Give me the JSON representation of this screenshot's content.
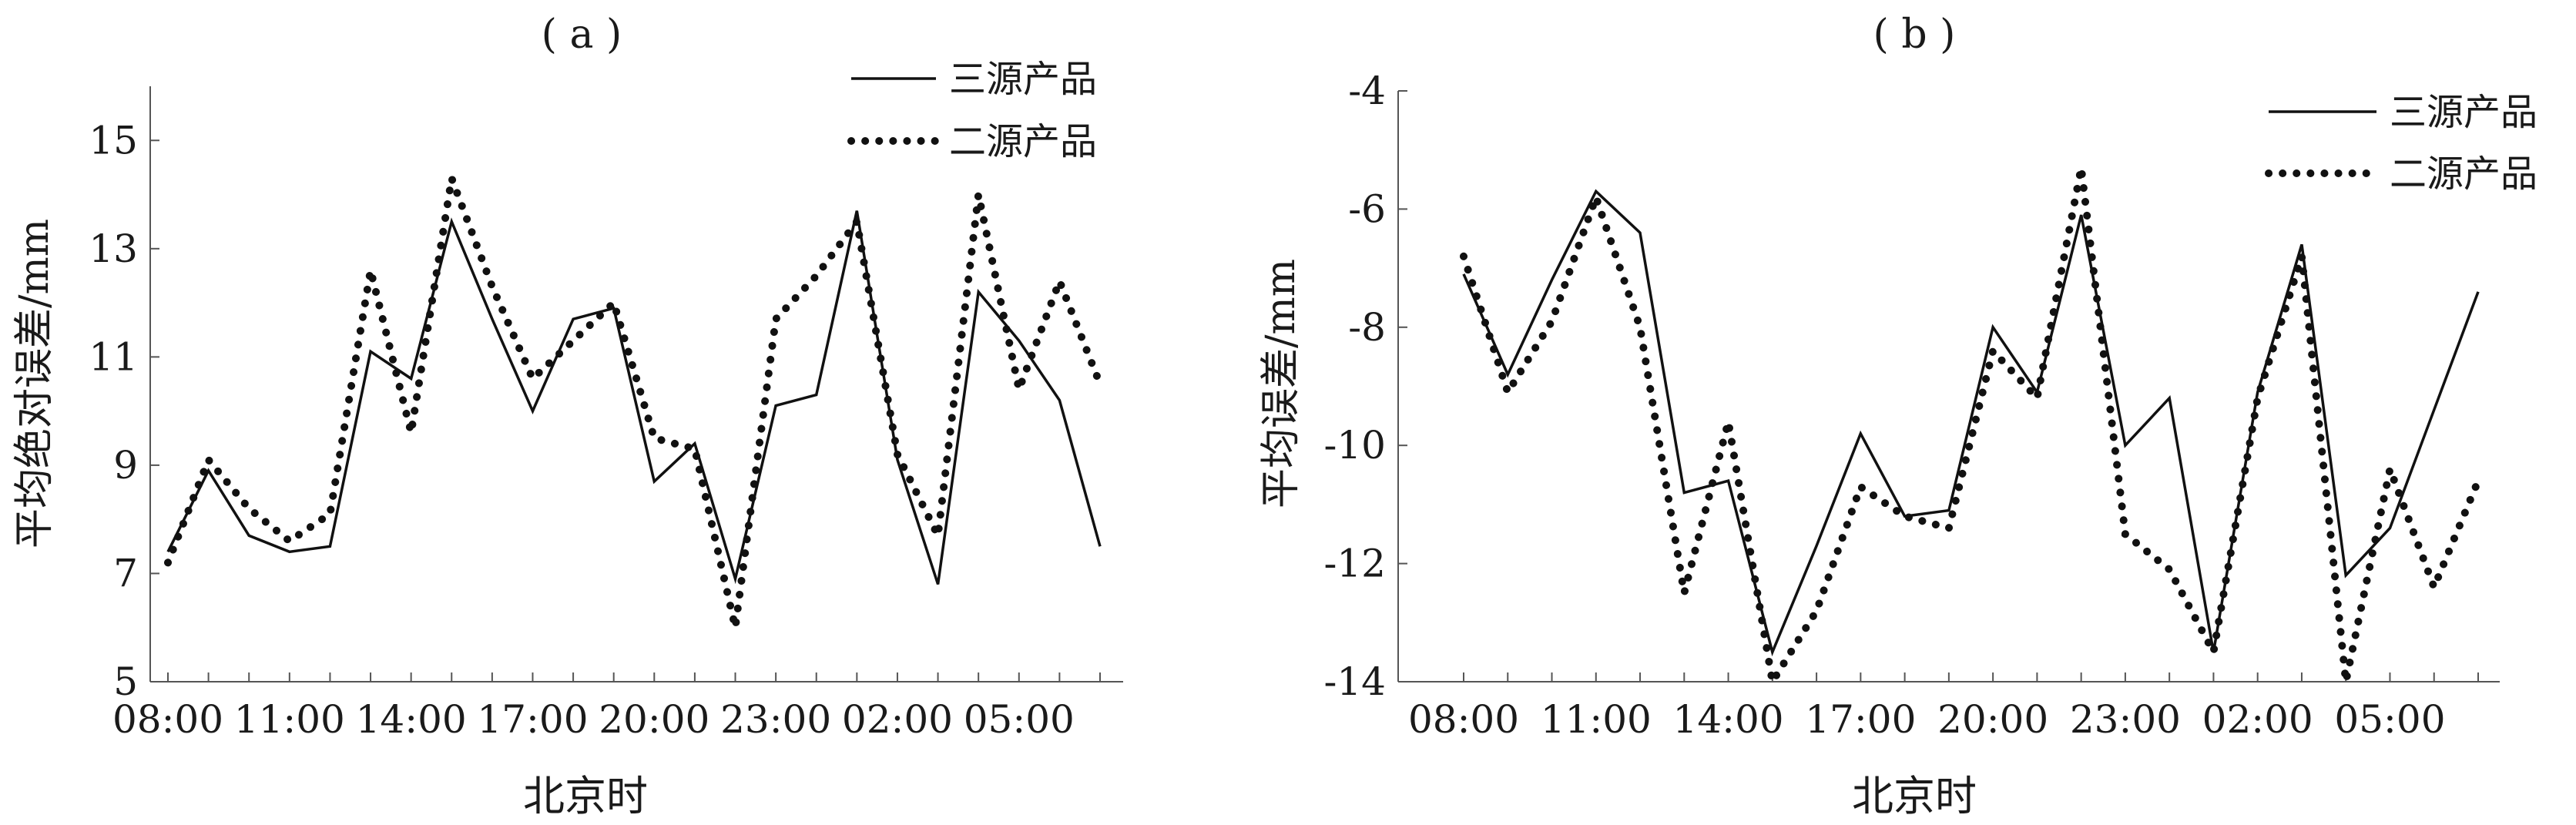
{
  "chart_data": [
    {
      "type": "line",
      "panel_label": "( a )",
      "xlabel": "北京时",
      "ylabel": "平均绝对误差/mm",
      "ylim": [
        5,
        16
      ],
      "yticks": [
        5,
        7,
        9,
        11,
        13,
        15
      ],
      "xtick_labels": [
        "08:00",
        "11:00",
        "14:00",
        "17:00",
        "20:00",
        "23:00",
        "02:00",
        "05:00"
      ],
      "x_count": 24,
      "legend_position": "top-right",
      "series": [
        {
          "name": "三源产品",
          "style": "solid",
          "values": [
            7.4,
            8.9,
            7.7,
            7.4,
            7.5,
            11.1,
            10.6,
            13.5,
            11.7,
            10.0,
            11.7,
            11.9,
            8.7,
            9.4,
            6.9,
            10.1,
            10.3,
            13.7,
            9.1,
            6.8,
            12.2,
            11.3,
            10.2,
            7.5
          ]
        },
        {
          "name": "二源产品",
          "style": "dotted",
          "values": [
            7.2,
            9.1,
            8.2,
            7.6,
            8.1,
            12.6,
            9.6,
            14.3,
            12.3,
            10.6,
            11.3,
            12.0,
            9.5,
            9.3,
            6.0,
            11.7,
            12.5,
            13.5,
            9.2,
            7.7,
            14.0,
            10.4,
            12.4,
            10.5
          ]
        }
      ]
    },
    {
      "type": "line",
      "panel_label": "( b )",
      "xlabel": "北京时",
      "ylabel": "平均误差/mm",
      "ylim": [
        -14,
        -4
      ],
      "yticks": [
        -14,
        -12,
        -10,
        -8,
        -6,
        -4
      ],
      "xtick_labels": [
        "08:00",
        "11:00",
        "14:00",
        "17:00",
        "20:00",
        "23:00",
        "02:00",
        "05:00"
      ],
      "x_count": 24,
      "legend_position": "top-right",
      "series": [
        {
          "name": "三源产品",
          "style": "solid",
          "values": [
            -7.1,
            -8.8,
            -7.2,
            -5.7,
            -6.4,
            -10.8,
            -10.6,
            -13.5,
            -11.7,
            -9.8,
            -11.2,
            -11.1,
            -8.0,
            -9.1,
            -6.1,
            -10.0,
            -9.2,
            -13.5,
            -9.1,
            -6.6,
            -12.2,
            -11.4,
            -9.4,
            -7.4
          ]
        },
        {
          "name": "二源产品",
          "style": "dotted",
          "values": [
            -6.8,
            -9.1,
            -7.9,
            -5.8,
            -8.0,
            -12.5,
            -9.6,
            -14.0,
            -12.8,
            -10.7,
            -11.2,
            -11.4,
            -8.4,
            -9.2,
            -5.3,
            -11.5,
            -12.1,
            -13.5,
            -9.2,
            -6.8,
            -14.0,
            -10.4,
            -12.4,
            -10.6
          ]
        }
      ]
    }
  ]
}
